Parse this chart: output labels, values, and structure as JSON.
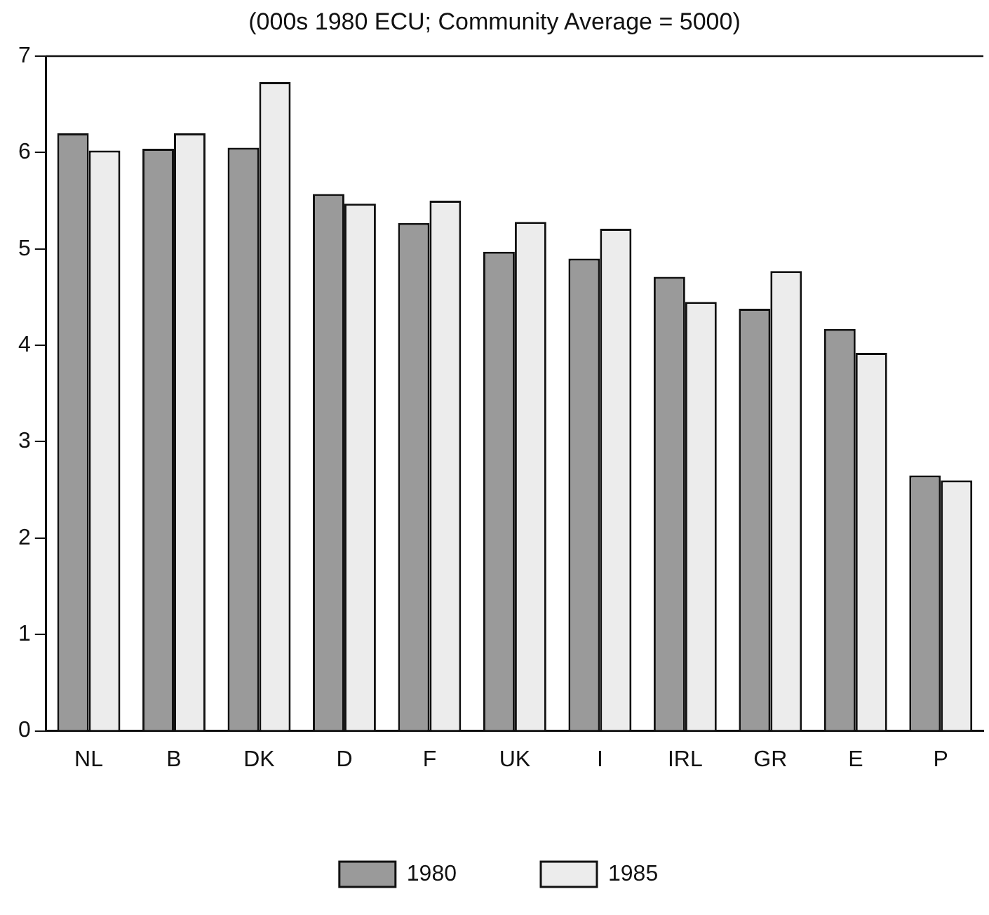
{
  "chart_data": {
    "type": "bar",
    "subtitle": "(000s 1980 ECU; Community Average  = 5000)",
    "categories": [
      "NL",
      "B",
      "DK",
      "D",
      "F",
      "UK",
      "I",
      "IRL",
      "GR",
      "E",
      "P"
    ],
    "series": [
      {
        "name": "1980",
        "color": "#9a9a9a",
        "values": [
          6.2,
          6.04,
          6.05,
          5.57,
          5.27,
          4.97,
          4.9,
          4.71,
          4.38,
          4.17,
          2.65
        ]
      },
      {
        "name": "1985",
        "color": "#ececec",
        "values": [
          6.02,
          6.2,
          6.73,
          5.47,
          5.5,
          5.28,
          5.21,
          4.45,
          4.77,
          3.92,
          2.6
        ]
      }
    ],
    "ylim": [
      0,
      7
    ],
    "yticks": [
      0,
      1,
      2,
      3,
      4,
      5,
      6,
      7
    ],
    "grid": false,
    "legend": "bottom"
  }
}
